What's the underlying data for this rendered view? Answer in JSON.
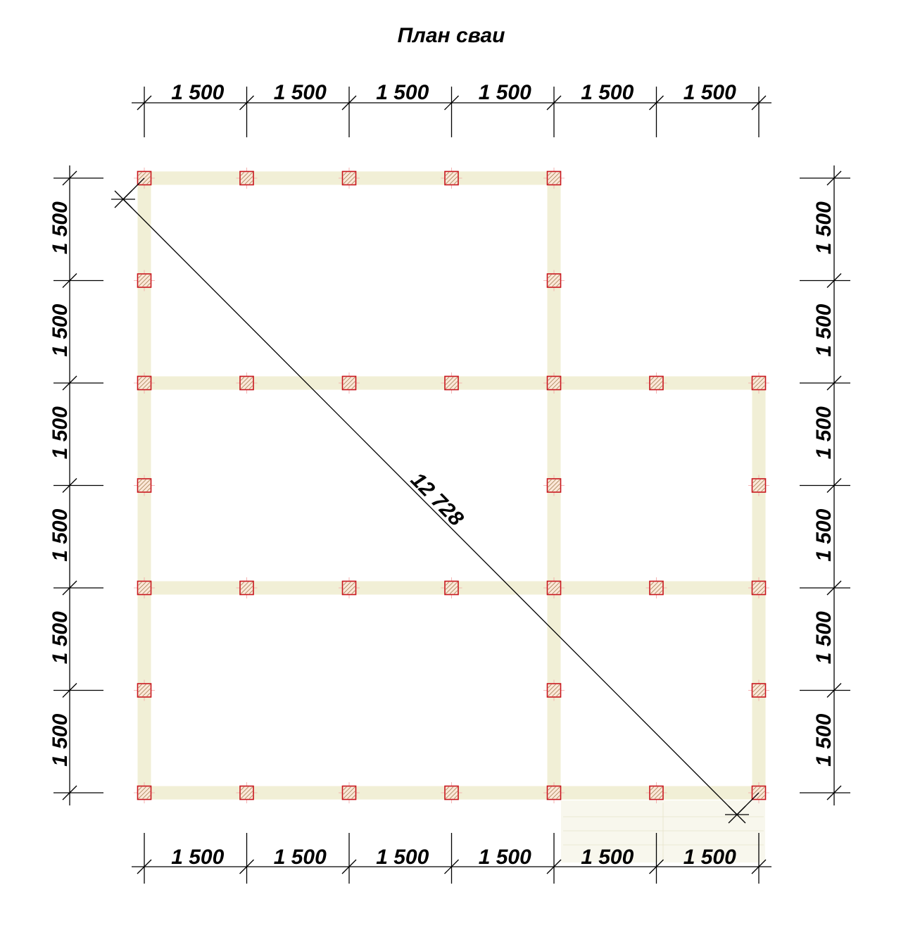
{
  "title": "План сваи",
  "diagonal_label": "12 728",
  "dimensions": {
    "top": [
      "1 500",
      "1 500",
      "1 500",
      "1 500",
      "1 500",
      "1 500"
    ],
    "bottom": [
      "1 500",
      "1 500",
      "1 500",
      "1 500",
      "1 500",
      "1 500"
    ],
    "left": [
      "1 500",
      "1 500",
      "1 500",
      "1 500",
      "1 500",
      "1 500"
    ],
    "right": [
      "1 500",
      "1 500",
      "1 500",
      "1 500",
      "1 500",
      "1 500"
    ]
  },
  "grid": {
    "columns": 7,
    "rows": 7,
    "beams": [
      {
        "row": 0,
        "from": 0,
        "to": 4
      },
      {
        "row": 2,
        "from": 0,
        "to": 6
      },
      {
        "row": 4,
        "from": 0,
        "to": 6
      },
      {
        "row": 6,
        "from": 0,
        "to": 6
      }
    ],
    "vertical_beams": [
      {
        "col": 0,
        "from": 0,
        "to": 6
      },
      {
        "col": 4,
        "from": 0,
        "to": 6
      },
      {
        "col": 6,
        "from": 2,
        "to": 6
      }
    ],
    "piles": [
      [
        0,
        0
      ],
      [
        1,
        0
      ],
      [
        2,
        0
      ],
      [
        3,
        0
      ],
      [
        4,
        0
      ],
      [
        0,
        1
      ],
      [
        4,
        1
      ],
      [
        0,
        2
      ],
      [
        1,
        2
      ],
      [
        2,
        2
      ],
      [
        3,
        2
      ],
      [
        4,
        2
      ],
      [
        5,
        2
      ],
      [
        6,
        2
      ],
      [
        0,
        3
      ],
      [
        4,
        3
      ],
      [
        6,
        3
      ],
      [
        0,
        4
      ],
      [
        1,
        4
      ],
      [
        2,
        4
      ],
      [
        3,
        4
      ],
      [
        4,
        4
      ],
      [
        5,
        4
      ],
      [
        6,
        4
      ],
      [
        0,
        5
      ],
      [
        4,
        5
      ],
      [
        6,
        5
      ],
      [
        0,
        6
      ],
      [
        1,
        6
      ],
      [
        2,
        6
      ],
      [
        3,
        6
      ],
      [
        4,
        6
      ],
      [
        5,
        6
      ],
      [
        6,
        6
      ]
    ]
  },
  "colors": {
    "beam": "#f1efd6",
    "pile_outline": "#c8161d",
    "pile_hatch": "#b08c60"
  }
}
